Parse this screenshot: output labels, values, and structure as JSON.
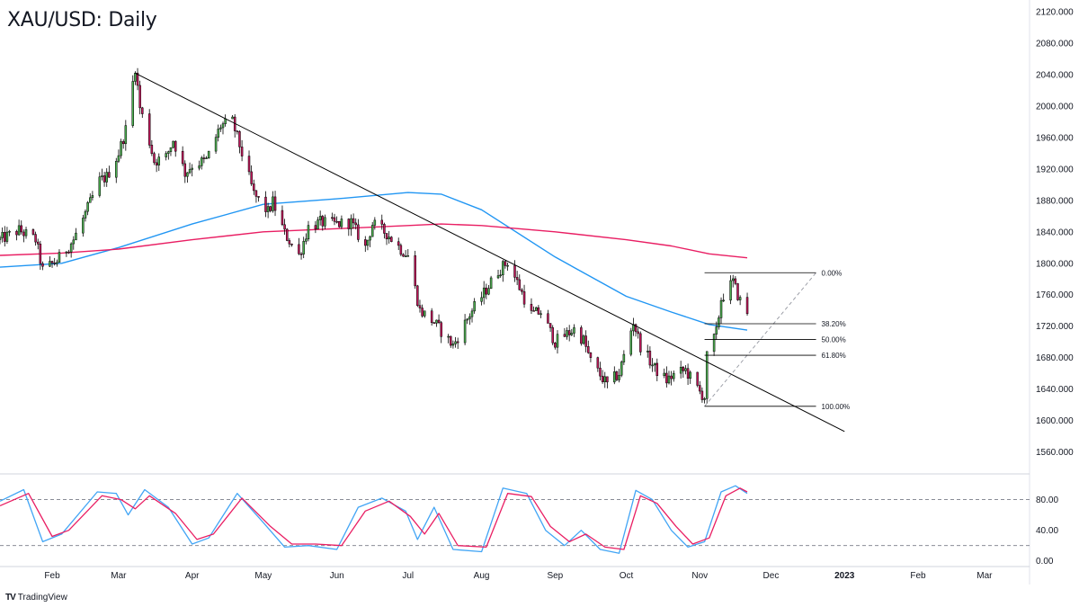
{
  "title": "XAU/USD: Daily",
  "branding": {
    "logo_text": "TV",
    "name": "TradingView"
  },
  "colors": {
    "bull": "#4caf50",
    "bear": "#c2185b",
    "wick": "#000000",
    "sma_short": "#2196f3",
    "sma_long": "#e91e63",
    "trendline": "#000000",
    "stoch_k": "#42a5f5",
    "stoch_d": "#e91e63"
  },
  "chart_data": [
    {
      "type": "candlestick",
      "panel": "price",
      "y_ticks": [
        "2120.000",
        "2080.000",
        "2040.000",
        "2000.000",
        "1960.000",
        "1920.000",
        "1880.000",
        "1840.000",
        "1800.000",
        "1760.000",
        "1720.000",
        "1680.000",
        "1640.000",
        "1600.000",
        "1560.000"
      ],
      "ylim": [
        1540,
        2135
      ],
      "x_ticks": [
        {
          "label": "Feb",
          "date": "2022-02-01"
        },
        {
          "label": "Mar",
          "date": "2022-03-01"
        },
        {
          "label": "Apr",
          "date": "2022-04-01"
        },
        {
          "label": "May",
          "date": "2022-05-01"
        },
        {
          "label": "Jun",
          "date": "2022-06-01"
        },
        {
          "label": "Jul",
          "date": "2022-07-01"
        },
        {
          "label": "Aug",
          "date": "2022-08-01"
        },
        {
          "label": "Sep",
          "date": "2022-09-01"
        },
        {
          "label": "Oct",
          "date": "2022-10-01"
        },
        {
          "label": "Nov",
          "date": "2022-11-01"
        },
        {
          "label": "Dec",
          "date": "2022-12-01"
        },
        {
          "label": "2023",
          "date": "2023-01-01",
          "bold": true
        },
        {
          "label": "Feb",
          "date": "2023-02-01"
        },
        {
          "label": "Mar",
          "date": "2023-03-01"
        }
      ],
      "xlim": [
        "2022-01-10",
        "2023-03-20"
      ],
      "anchors": [
        [
          "2022-01-10",
          1830
        ],
        [
          "2022-01-18",
          1842
        ],
        [
          "2022-01-25",
          1830
        ],
        [
          "2022-01-28",
          1791
        ],
        [
          "2022-02-03",
          1803
        ],
        [
          "2022-02-10",
          1830
        ],
        [
          "2022-02-16",
          1870
        ],
        [
          "2022-02-21",
          1905
        ],
        [
          "2022-02-24",
          1910
        ],
        [
          "2022-03-01",
          1940
        ],
        [
          "2022-03-04",
          1970
        ],
        [
          "2022-03-08",
          2050
        ],
        [
          "2022-03-10",
          1998
        ],
        [
          "2022-03-14",
          1955
        ],
        [
          "2022-03-16",
          1930
        ],
        [
          "2022-03-21",
          1935
        ],
        [
          "2022-03-24",
          1957
        ],
        [
          "2022-03-29",
          1915
        ],
        [
          "2022-04-01",
          1925
        ],
        [
          "2022-04-07",
          1931
        ],
        [
          "2022-04-13",
          1975
        ],
        [
          "2022-04-18",
          1980
        ],
        [
          "2022-04-21",
          1950
        ],
        [
          "2022-04-27",
          1888
        ],
        [
          "2022-05-03",
          1865
        ],
        [
          "2022-05-05",
          1878
        ],
        [
          "2022-05-10",
          1838
        ],
        [
          "2022-05-16",
          1810
        ],
        [
          "2022-05-20",
          1846
        ],
        [
          "2022-05-25",
          1852
        ],
        [
          "2022-06-01",
          1850
        ],
        [
          "2022-06-07",
          1852
        ],
        [
          "2022-06-13",
          1820
        ],
        [
          "2022-06-16",
          1850
        ],
        [
          "2022-06-22",
          1838
        ],
        [
          "2022-06-28",
          1818
        ],
        [
          "2022-07-01",
          1810
        ],
        [
          "2022-07-06",
          1740
        ],
        [
          "2022-07-12",
          1725
        ],
        [
          "2022-07-20",
          1695
        ],
        [
          "2022-07-27",
          1735
        ],
        [
          "2022-08-02",
          1762
        ],
        [
          "2022-08-08",
          1790
        ],
        [
          "2022-08-12",
          1802
        ],
        [
          "2022-08-16",
          1776
        ],
        [
          "2022-08-22",
          1735
        ],
        [
          "2022-08-26",
          1738
        ],
        [
          "2022-09-01",
          1700
        ],
        [
          "2022-09-09",
          1716
        ],
        [
          "2022-09-13",
          1702
        ],
        [
          "2022-09-16",
          1675
        ],
        [
          "2022-09-23",
          1645
        ],
        [
          "2022-09-28",
          1660
        ],
        [
          "2022-10-04",
          1726
        ],
        [
          "2022-10-07",
          1695
        ],
        [
          "2022-10-13",
          1666
        ],
        [
          "2022-10-18",
          1651
        ],
        [
          "2022-10-21",
          1658
        ],
        [
          "2022-10-26",
          1664
        ],
        [
          "2022-11-01",
          1636
        ],
        [
          "2022-11-03",
          1630
        ],
        [
          "2022-11-04",
          1681
        ],
        [
          "2022-11-08",
          1712
        ],
        [
          "2022-11-10",
          1755
        ],
        [
          "2022-11-15",
          1776
        ],
        [
          "2022-11-18",
          1752
        ],
        [
          "2022-11-21",
          1738
        ]
      ]
    },
    {
      "type": "line",
      "panel": "price",
      "series": [
        {
          "values": [
            [
              "2022-01-10",
              1795
            ],
            [
              "2022-02-05",
              1800
            ],
            [
              "2022-03-01",
              1820
            ],
            [
              "2022-04-01",
              1850
            ],
            [
              "2022-05-01",
              1875
            ],
            [
              "2022-06-01",
              1882
            ],
            [
              "2022-07-01",
              1890
            ],
            [
              "2022-07-15",
              1888
            ],
            [
              "2022-08-01",
              1868
            ],
            [
              "2022-09-01",
              1808
            ],
            [
              "2022-10-01",
              1758
            ],
            [
              "2022-10-20",
              1738
            ],
            [
              "2022-11-05",
              1722
            ],
            [
              "2022-11-21",
              1715
            ]
          ]
        },
        {
          "values": [
            [
              "2022-01-10",
              1810
            ],
            [
              "2022-02-05",
              1813
            ],
            [
              "2022-03-01",
              1818
            ],
            [
              "2022-04-01",
              1830
            ],
            [
              "2022-05-01",
              1840
            ],
            [
              "2022-06-01",
              1844
            ],
            [
              "2022-07-01",
              1848
            ],
            [
              "2022-07-15",
              1850
            ],
            [
              "2022-08-01",
              1848
            ],
            [
              "2022-09-01",
              1840
            ],
            [
              "2022-10-01",
              1830
            ],
            [
              "2022-10-20",
              1822
            ],
            [
              "2022-11-05",
              1812
            ],
            [
              "2022-11-21",
              1807
            ]
          ]
        }
      ],
      "trendline": [
        [
          "2022-03-08",
          2042
        ],
        [
          "2023-01-01",
          1586
        ]
      ]
    },
    {
      "type": "fibonacci",
      "panel": "price",
      "high": 1788,
      "low": 1618,
      "from_date": "2022-11-03",
      "to_date": "2022-12-20",
      "levels": [
        {
          "label": "0.00%",
          "ratio": 0
        },
        {
          "label": "38.20%",
          "ratio": 0.382
        },
        {
          "label": "50.00%",
          "ratio": 0.5
        },
        {
          "label": "61.80%",
          "ratio": 0.618
        },
        {
          "label": "100.00%",
          "ratio": 1
        }
      ]
    },
    {
      "type": "line",
      "panel": "stochastic",
      "y_ticks": [
        "80.00",
        "40.00",
        "0.00"
      ],
      "ylim": [
        -5,
        110
      ],
      "bands": [
        80,
        20
      ],
      "series": [
        {
          "values": [
            [
              "2022-01-10",
              78
            ],
            [
              "2022-01-20",
              93
            ],
            [
              "2022-01-28",
              25
            ],
            [
              "2022-02-05",
              35
            ],
            [
              "2022-02-20",
              90
            ],
            [
              "2022-02-28",
              88
            ],
            [
              "2022-03-05",
              60
            ],
            [
              "2022-03-12",
              93
            ],
            [
              "2022-03-22",
              70
            ],
            [
              "2022-04-01",
              22
            ],
            [
              "2022-04-08",
              30
            ],
            [
              "2022-04-20",
              88
            ],
            [
              "2022-05-01",
              50
            ],
            [
              "2022-05-10",
              18
            ],
            [
              "2022-05-20",
              20
            ],
            [
              "2022-06-01",
              15
            ],
            [
              "2022-06-10",
              70
            ],
            [
              "2022-06-20",
              82
            ],
            [
              "2022-06-30",
              65
            ],
            [
              "2022-07-05",
              28
            ],
            [
              "2022-07-12",
              70
            ],
            [
              "2022-07-20",
              15
            ],
            [
              "2022-08-01",
              12
            ],
            [
              "2022-08-10",
              95
            ],
            [
              "2022-08-20",
              88
            ],
            [
              "2022-08-28",
              40
            ],
            [
              "2022-09-05",
              20
            ],
            [
              "2022-09-12",
              40
            ],
            [
              "2022-09-20",
              15
            ],
            [
              "2022-09-28",
              10
            ],
            [
              "2022-10-05",
              92
            ],
            [
              "2022-10-12",
              80
            ],
            [
              "2022-10-20",
              40
            ],
            [
              "2022-10-27",
              18
            ],
            [
              "2022-11-03",
              25
            ],
            [
              "2022-11-10",
              90
            ],
            [
              "2022-11-16",
              98
            ],
            [
              "2022-11-21",
              88
            ]
          ]
        },
        {
          "values": [
            [
              "2022-01-10",
              72
            ],
            [
              "2022-01-22",
              88
            ],
            [
              "2022-02-01",
              32
            ],
            [
              "2022-02-08",
              40
            ],
            [
              "2022-02-22",
              85
            ],
            [
              "2022-03-02",
              80
            ],
            [
              "2022-03-08",
              68
            ],
            [
              "2022-03-14",
              85
            ],
            [
              "2022-03-25",
              62
            ],
            [
              "2022-04-03",
              28
            ],
            [
              "2022-04-10",
              35
            ],
            [
              "2022-04-22",
              82
            ],
            [
              "2022-05-04",
              45
            ],
            [
              "2022-05-13",
              22
            ],
            [
              "2022-05-23",
              22
            ],
            [
              "2022-06-03",
              20
            ],
            [
              "2022-06-13",
              65
            ],
            [
              "2022-06-23",
              78
            ],
            [
              "2022-07-02",
              58
            ],
            [
              "2022-07-08",
              35
            ],
            [
              "2022-07-14",
              62
            ],
            [
              "2022-07-22",
              20
            ],
            [
              "2022-08-03",
              18
            ],
            [
              "2022-08-12",
              88
            ],
            [
              "2022-08-22",
              84
            ],
            [
              "2022-08-30",
              45
            ],
            [
              "2022-09-07",
              25
            ],
            [
              "2022-09-14",
              35
            ],
            [
              "2022-09-22",
              18
            ],
            [
              "2022-09-30",
              15
            ],
            [
              "2022-10-07",
              85
            ],
            [
              "2022-10-14",
              75
            ],
            [
              "2022-10-22",
              45
            ],
            [
              "2022-10-29",
              22
            ],
            [
              "2022-11-05",
              30
            ],
            [
              "2022-11-12",
              85
            ],
            [
              "2022-11-18",
              95
            ],
            [
              "2022-11-21",
              90
            ]
          ]
        }
      ]
    }
  ]
}
